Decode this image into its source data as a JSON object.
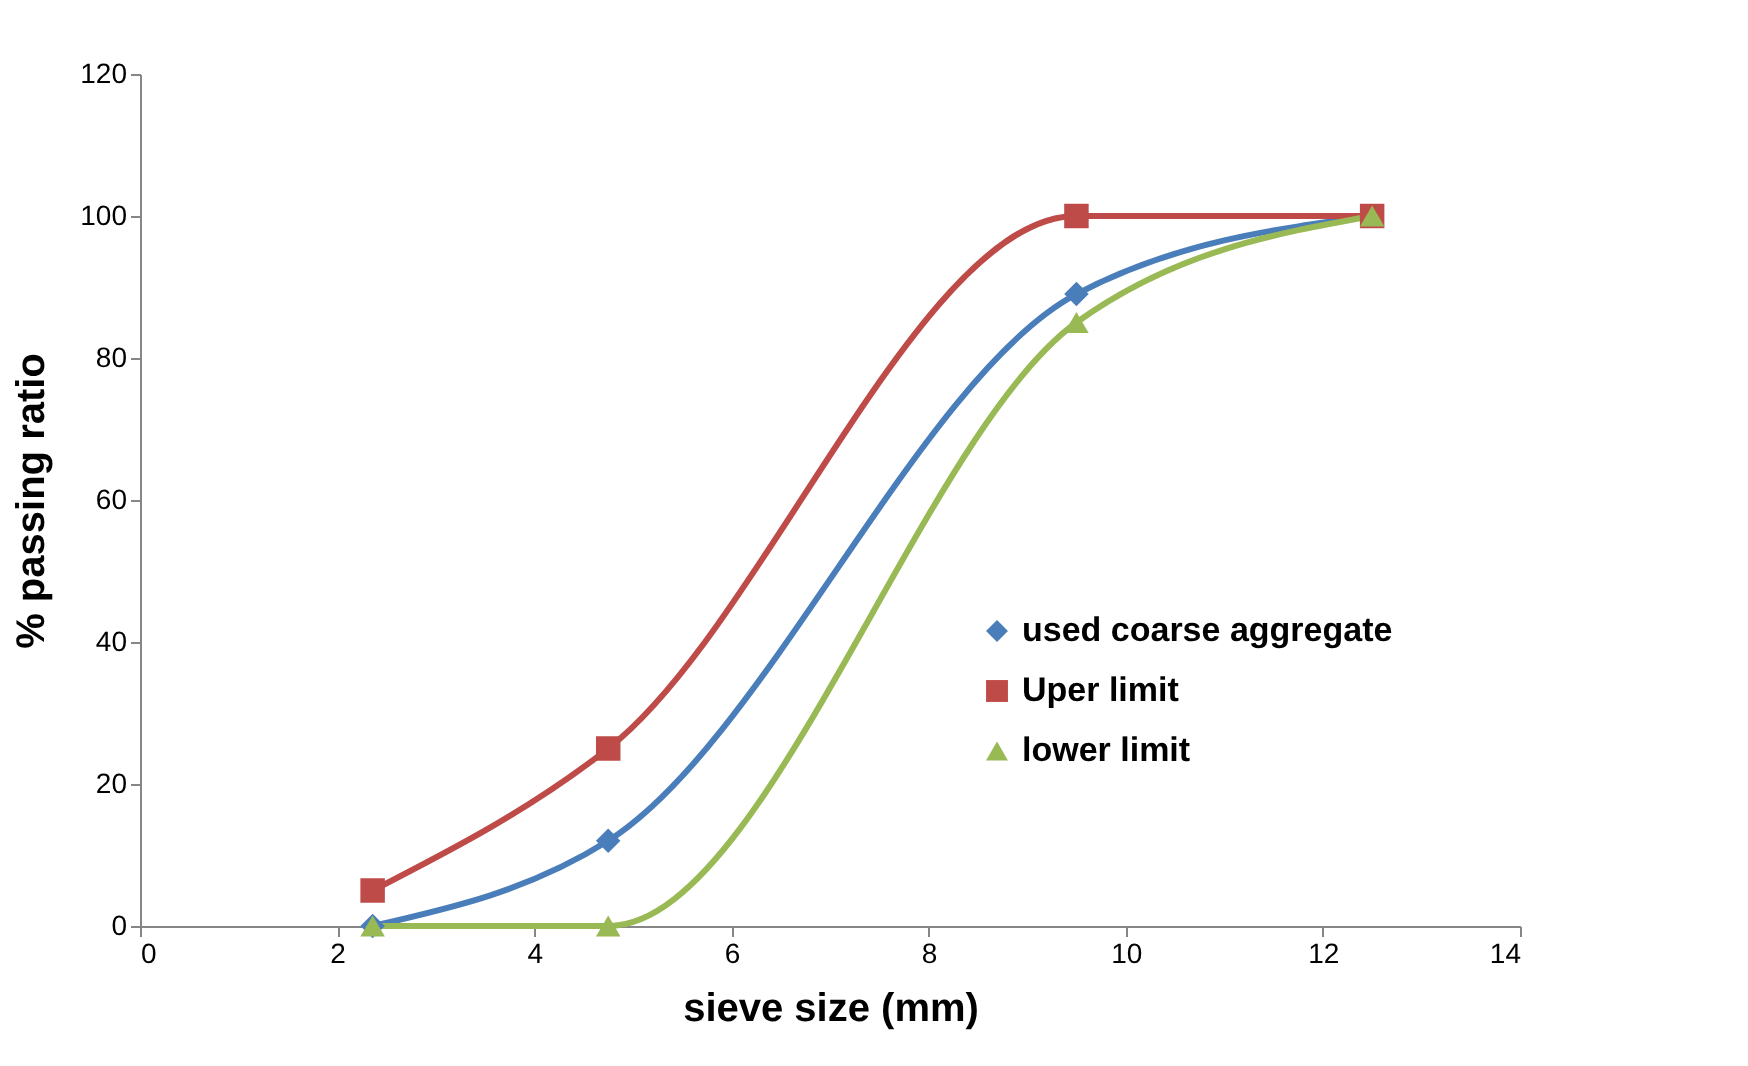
{
  "chart_data": {
    "type": "line",
    "xlabel": "sieve size (mm)",
    "ylabel": "% passing ratio",
    "x": [
      2.36,
      4.75,
      9.5,
      12.5
    ],
    "series": [
      {
        "name": "used coarse aggregate",
        "color": "#4a7ebb",
        "marker": "diamond",
        "values": [
          0,
          12,
          89,
          100
        ]
      },
      {
        "name": "Uper limit",
        "color": "#be4b48",
        "marker": "square",
        "values": [
          5,
          25,
          100,
          100
        ]
      },
      {
        "name": "lower limit",
        "color": "#98b954",
        "marker": "triangle",
        "values": [
          0,
          0,
          85,
          100
        ]
      }
    ],
    "xlim": [
      0,
      14
    ],
    "xticks": [
      0,
      2,
      4,
      6,
      8,
      10,
      12,
      14
    ],
    "ylim": [
      0,
      120
    ],
    "yticks": [
      0,
      20,
      40,
      60,
      80,
      100,
      120
    ],
    "grid": false,
    "legend": "bottom right",
    "line_style": "solid"
  }
}
